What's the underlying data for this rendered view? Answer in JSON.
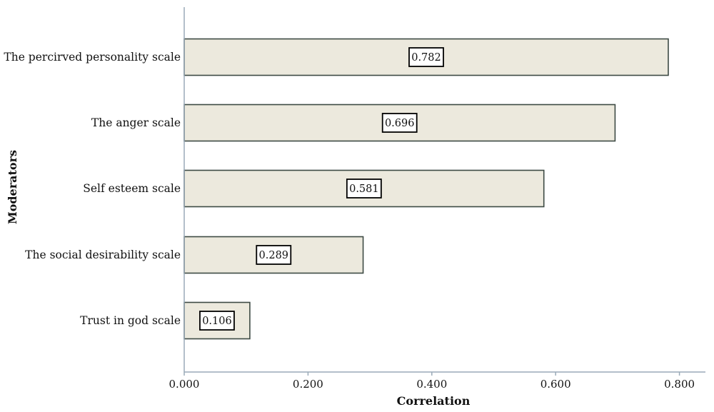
{
  "chart_data": {
    "type": "bar",
    "orientation": "horizontal",
    "title": "",
    "xlabel": "Correlation",
    "ylabel": "Moderators",
    "categories": [
      "The percirved personality scale",
      "The anger scale",
      "Self esteem scale",
      "The social desirability scale",
      "Trust in god scale"
    ],
    "values": [
      0.782,
      0.696,
      0.581,
      0.289,
      0.106
    ],
    "data_labels": [
      "0.782",
      "0.696",
      "0.581",
      "0.289",
      "0.106"
    ],
    "xlim": [
      0,
      0.842
    ],
    "xticks": [
      0,
      0.2,
      0.4,
      0.6,
      0.8
    ],
    "xtick_labels": [
      "0.000",
      "0.200",
      "0.400",
      "0.600",
      "0.800"
    ],
    "grid": false,
    "legend": "none",
    "colors": {
      "bar_fill": "#ece9dd",
      "bar_stroke": "#3d4a44",
      "axis": "#9aaab8",
      "label_box_stroke": "#000000"
    }
  }
}
